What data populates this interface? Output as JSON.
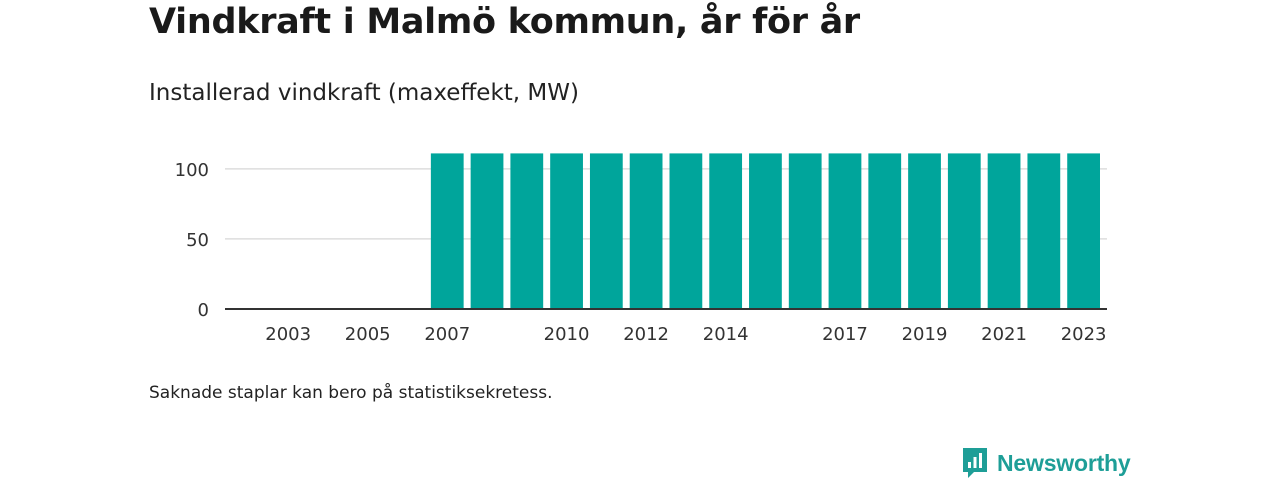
{
  "chart_data": {
    "type": "bar",
    "title": "Vindkraft i Malmö kommun, år för år",
    "subtitle": "Installerad vindkraft (maxeffekt, MW)",
    "categories": [
      "2002",
      "2003",
      "2004",
      "2005",
      "2006",
      "2007",
      "2008",
      "2009",
      "2010",
      "2011",
      "2012",
      "2013",
      "2014",
      "2015",
      "2016",
      "2017",
      "2018",
      "2019",
      "2020",
      "2021",
      "2022",
      "2023"
    ],
    "x_tick_labels": [
      "2003",
      "2005",
      "2007",
      "2010",
      "2012",
      "2014",
      "2017",
      "2019",
      "2021",
      "2023"
    ],
    "series": [
      {
        "values": [
          0,
          0.5,
          0.5,
          0.5,
          0.5,
          111,
          111,
          111,
          111,
          111,
          111,
          111,
          111,
          111,
          111,
          111,
          111,
          111,
          111,
          111,
          111,
          111
        ]
      }
    ],
    "ylim": [
      0,
      112
    ],
    "y_ticks": [
      0,
      50,
      100
    ],
    "grid": true,
    "bar_color": "#00a59b",
    "note": "Saknade staplar kan bero på statistiksekretess."
  },
  "brand": {
    "name": "Newsworthy",
    "color": "#1e9e97",
    "icon": "newsworthy-logo-icon"
  }
}
